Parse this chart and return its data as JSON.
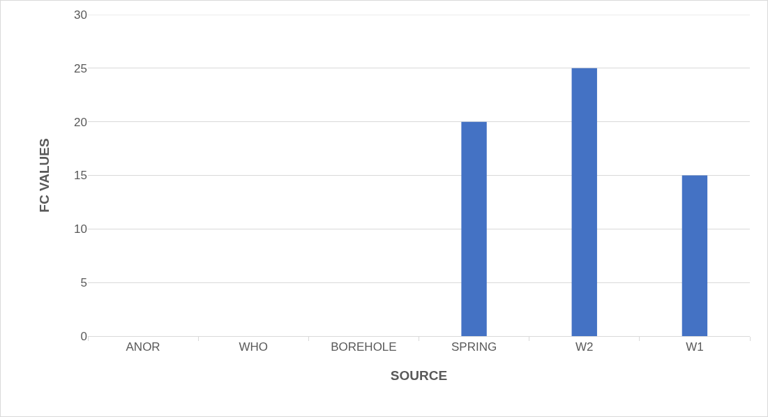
{
  "chart_data": {
    "type": "bar",
    "xlabel": "SOURCE",
    "ylabel": "FC VALUES",
    "categories": [
      "ANOR",
      "WHO",
      "BOREHOLE",
      "SPRING",
      "W2",
      "W1"
    ],
    "values": [
      0,
      0,
      0,
      20,
      25,
      15
    ],
    "color": "#4472c4",
    "ylim": [
      0,
      30
    ],
    "yticks": [
      0,
      5,
      10,
      15,
      20,
      25,
      30
    ],
    "grid": "y"
  }
}
